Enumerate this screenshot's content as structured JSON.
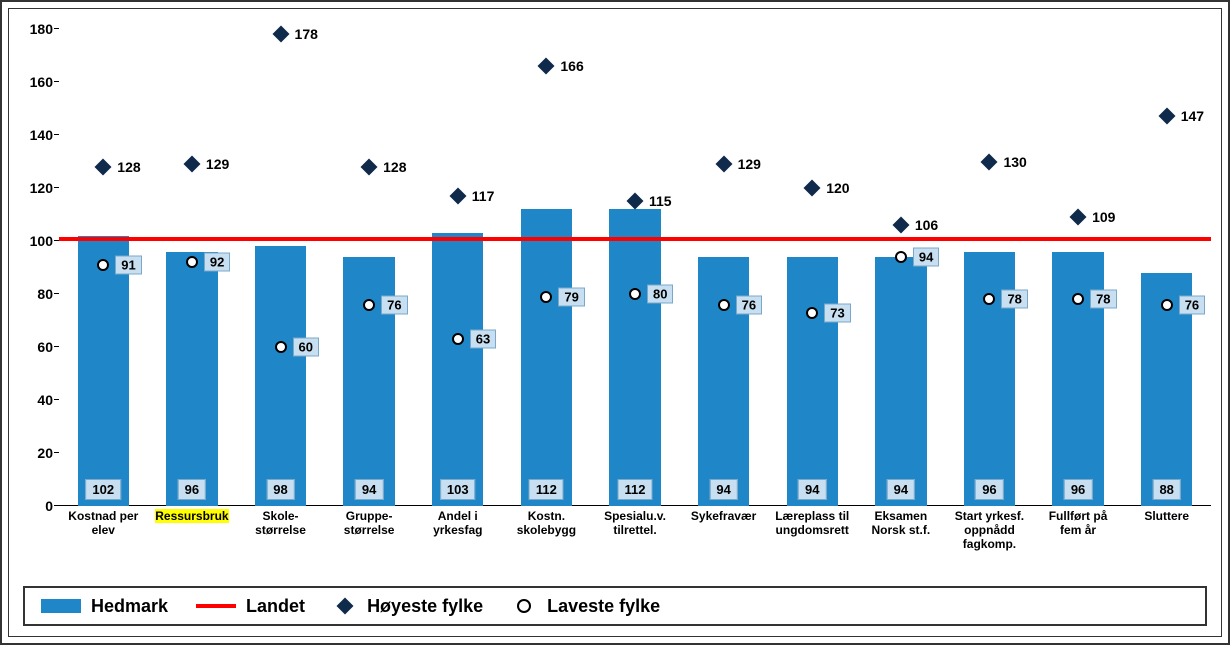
{
  "chart": {
    "type": "bar",
    "ylim": [
      0,
      180
    ],
    "ytick_step": 20,
    "yticks": [
      0,
      20,
      40,
      60,
      80,
      100,
      120,
      140,
      160,
      180
    ],
    "reference_line": 100,
    "bar_color": "#1f86c7",
    "line_color": "#ff0000",
    "diamond_color": "#0f2a4a",
    "circle_fill": "#ffffff",
    "circle_stroke": "#000000",
    "label_box_bg": "#c7dff0",
    "label_box_border": "#7aa8c8",
    "background_color": "#ffffff",
    "border_color": "#333333",
    "font_family": "Arial",
    "axis_fontsize": 14,
    "label_fontsize": 13,
    "xlabel_fontsize": 12,
    "legend_fontsize": 18,
    "bar_width_ratio": 0.58,
    "categories": [
      {
        "label_lines": [
          "Kostnad per",
          "elev"
        ],
        "bar": 102,
        "high": 128,
        "low": 91,
        "highlight": false
      },
      {
        "label_lines": [
          "Ressursbruk"
        ],
        "bar": 96,
        "high": 129,
        "low": 92,
        "highlight": true
      },
      {
        "label_lines": [
          "Skole-",
          "størrelse"
        ],
        "bar": 98,
        "high": 178,
        "low": 60,
        "highlight": false
      },
      {
        "label_lines": [
          "Gruppe-",
          "størrelse"
        ],
        "bar": 94,
        "high": 128,
        "low": 76,
        "highlight": false
      },
      {
        "label_lines": [
          "Andel i",
          "yrkesfag"
        ],
        "bar": 103,
        "high": 117,
        "low": 63,
        "highlight": false
      },
      {
        "label_lines": [
          "Kostn.",
          "skolebygg"
        ],
        "bar": 112,
        "high": 166,
        "low": 79,
        "highlight": false
      },
      {
        "label_lines": [
          "Spesialu.v.",
          "tilrettel."
        ],
        "bar": 112,
        "high": 115,
        "low": 80,
        "highlight": false
      },
      {
        "label_lines": [
          "Sykefravær"
        ],
        "bar": 94,
        "high": 129,
        "low": 76,
        "highlight": false
      },
      {
        "label_lines": [
          "Læreplass til",
          "ungdomsrett"
        ],
        "bar": 94,
        "high": 120,
        "low": 73,
        "highlight": false
      },
      {
        "label_lines": [
          "Eksamen",
          "Norsk st.f."
        ],
        "bar": 94,
        "high": 106,
        "low": 94,
        "highlight": false
      },
      {
        "label_lines": [
          "Start yrkesf.",
          "oppnådd",
          "fagkomp."
        ],
        "bar": 96,
        "high": 130,
        "low": 78,
        "highlight": false
      },
      {
        "label_lines": [
          "Fullført på",
          "fem år"
        ],
        "bar": 96,
        "high": 109,
        "low": 78,
        "highlight": false
      },
      {
        "label_lines": [
          "Sluttere"
        ],
        "bar": 88,
        "high": 147,
        "low": 76,
        "highlight": false
      }
    ],
    "legend": {
      "bar": "Hedmark",
      "line": "Landet",
      "diamond": "Høyeste fylke",
      "circle": "Laveste fylke"
    }
  }
}
